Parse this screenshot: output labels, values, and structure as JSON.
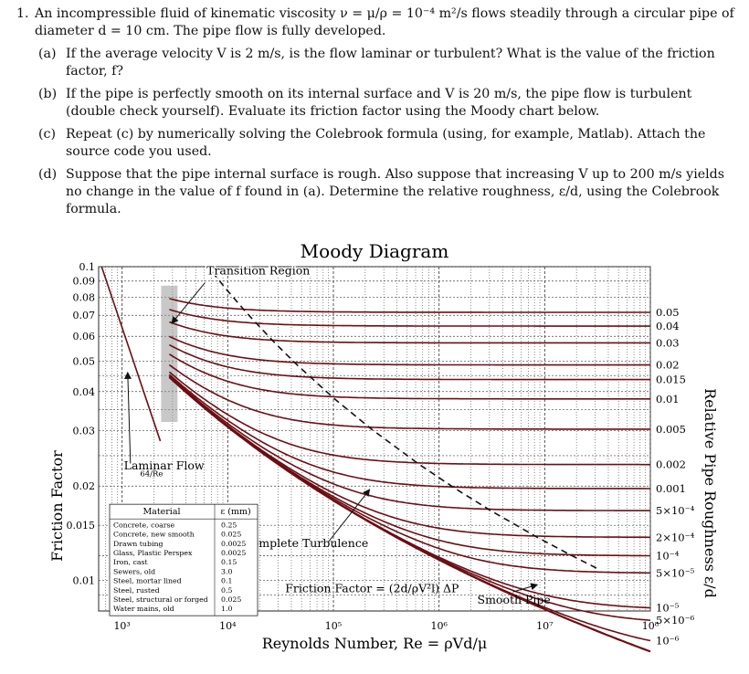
{
  "problem": {
    "number": "1.",
    "intro": "An incompressible fluid of kinematic viscosity ν = μ/ρ = 10⁻⁴ m²/s flows steadily through a circular pipe of diameter d = 10 cm. The pipe flow is fully developed.",
    "parts": [
      {
        "label": "(a)",
        "text": "If the average velocity V is 2 m/s, is the flow laminar or turbulent? What is the value of the friction factor, f?"
      },
      {
        "label": "(b)",
        "text": "If the pipe is perfectly smooth on its internal surface and V is 20 m/s, the pipe flow is turbulent (double check yourself). Evaluate its friction factor using the Moody chart below."
      },
      {
        "label": "(c)",
        "text": "Repeat (c) by numerically solving the Colebrook formula (using, for example, Matlab). Attach the source code you used."
      },
      {
        "label": "(d)",
        "text": "Suppose that the pipe internal surface is rough. Also suppose that increasing V up to 200 m/s yields no change in the value of f found in (a). Determine the relative roughness, ε/d, using the Colebrook formula."
      }
    ]
  },
  "chart_data": {
    "type": "line",
    "title": "Moody Diagram",
    "xlabel": "Reynolds Number, Re = ρVd/μ",
    "ylabel": "Friction Factor",
    "y2label": "Relative Pipe Roughness ε/d",
    "xscale": "log",
    "yscale": "log",
    "xlim": [
      600,
      100000000
    ],
    "ylim": [
      0.008,
      0.1
    ],
    "x_ticks": [
      "10³",
      "10⁴",
      "10⁵",
      "10⁶",
      "10⁷",
      "10⁸"
    ],
    "y_ticks": [
      "0.1",
      "0.09",
      "0.08",
      "0.07",
      "0.06",
      "0.05",
      "0.04",
      "0.03",
      "0.02",
      "0.015",
      "0.01"
    ],
    "roughness_labels": [
      "0.05",
      "0.04",
      "0.03",
      "0.02",
      "0.015",
      "0.01",
      "0.005",
      "0.002",
      "0.001",
      "5×10⁻⁴",
      "2×10⁻⁴",
      "10⁻⁴",
      "5×10⁻⁵",
      "10⁻⁵",
      "5×10⁻⁶",
      "10⁻⁶"
    ],
    "roughness_values": [
      0.05,
      0.04,
      0.03,
      0.02,
      0.015,
      0.01,
      0.005,
      0.002,
      0.001,
      0.0005,
      0.0002,
      0.0001,
      5e-05,
      1e-05,
      5e-06,
      1e-06
    ],
    "annotations": {
      "transition": "Transition Region",
      "laminar": "Laminar Flow",
      "laminar_formula": "64/Re",
      "complete": "Complete Turbulence",
      "friction_formula": "Friction Factor = (2d/ρV²l) ΔP",
      "smooth": "Smooth Pipe"
    },
    "materials_table": {
      "headers": [
        "Material",
        "ε (mm)"
      ],
      "rows": [
        [
          "Concrete, coarse",
          "0.25"
        ],
        [
          "Concrete, new smooth",
          "0.025"
        ],
        [
          "Drawn tubing",
          "0.0025"
        ],
        [
          "Glass, Plastic Perspex",
          "0.0025"
        ],
        [
          "Iron, cast",
          "0.15"
        ],
        [
          "Sewers, old",
          "3.0"
        ],
        [
          "Steel, mortar lined",
          "0.1"
        ],
        [
          "Steel, rusted",
          "0.5"
        ],
        [
          "Steel, structural or forged",
          "0.025"
        ],
        [
          "Water mains, old",
          "1.0"
        ]
      ]
    },
    "colors": {
      "curve": "#6b0f14",
      "grid": "#444444",
      "transition_band": "#9a9a9a"
    }
  }
}
